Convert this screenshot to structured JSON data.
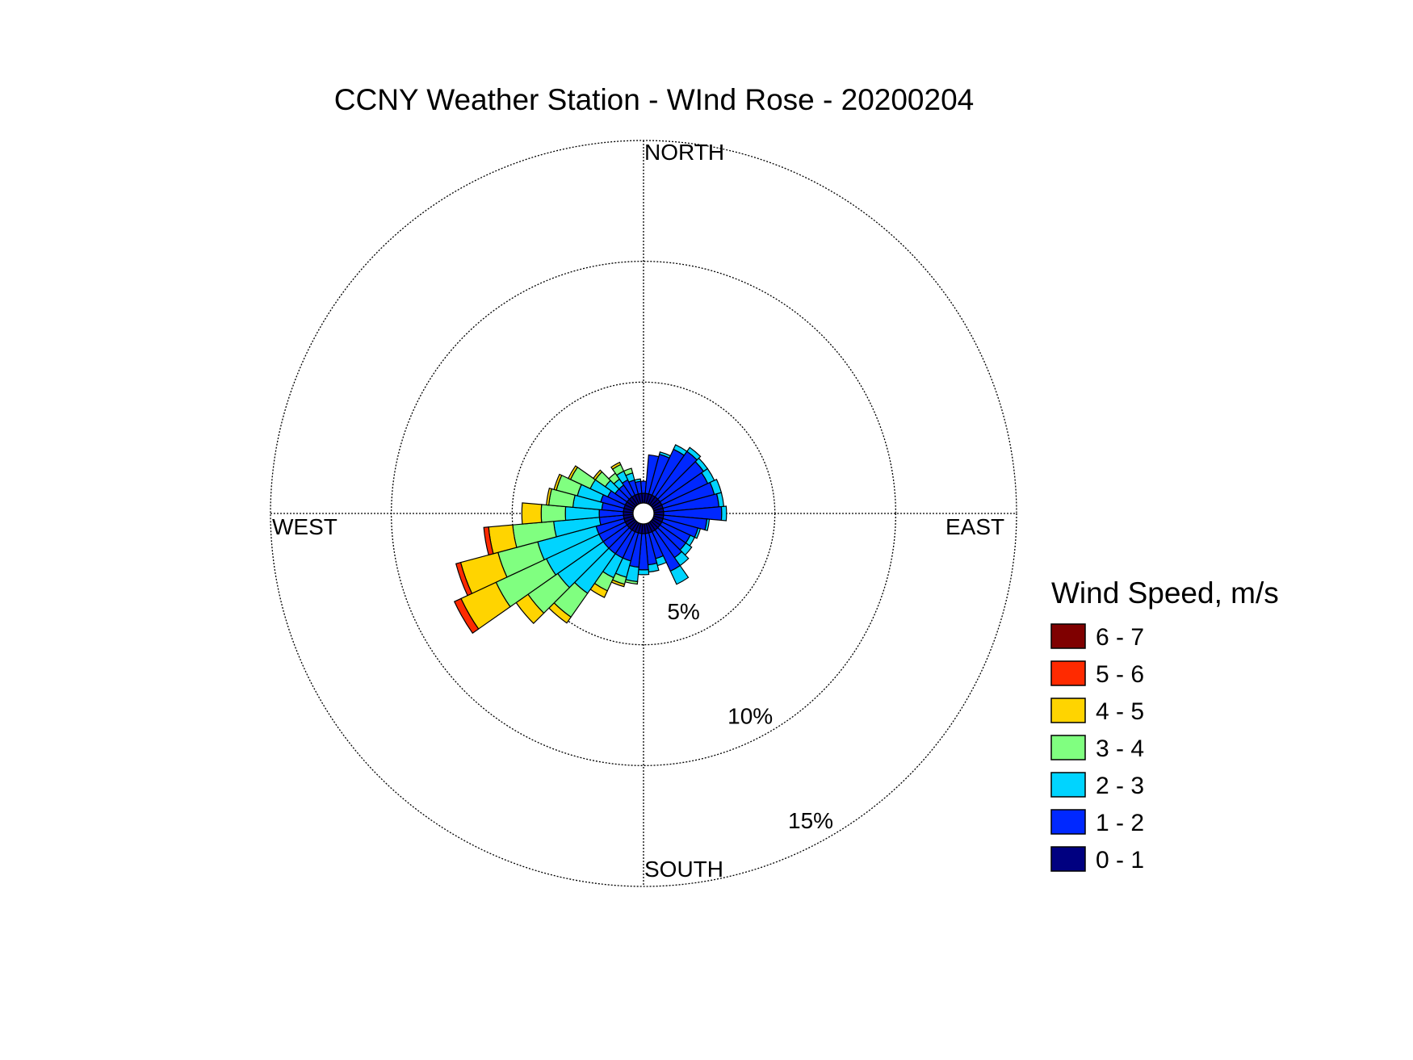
{
  "chart_data": {
    "type": "wind-rose",
    "title": "CCNY Weather Station - WInd Rose - 20200204",
    "directions": {
      "north": "NORTH",
      "east": "EAST",
      "south": "SOUTH",
      "west": "WEST"
    },
    "radial_ticks": [
      {
        "value": 5,
        "label": "5%"
      },
      {
        "value": 10,
        "label": "10%"
      },
      {
        "value": 15,
        "label": "15%"
      }
    ],
    "radial_max": 15,
    "grid": true,
    "legend": {
      "title": "Wind Speed, m/s",
      "position": "right",
      "bins": [
        {
          "label": "6 - 7",
          "color": "#7f0000"
        },
        {
          "label": "5 - 6",
          "color": "#ff2a00"
        },
        {
          "label": "4 - 5",
          "color": "#ffd400"
        },
        {
          "label": "3 - 4",
          "color": "#80ff80"
        },
        {
          "label": "2 - 3",
          "color": "#00d4ff"
        },
        {
          "label": "1 - 2",
          "color": "#0028ff"
        },
        {
          "label": "0 - 1",
          "color": "#000080"
        }
      ]
    },
    "sector_width_deg": 10,
    "series_order": [
      "0 - 1",
      "1 - 2",
      "2 - 3",
      "3 - 4",
      "4 - 5",
      "5 - 6",
      "6 - 7"
    ],
    "sectors": [
      {
        "dir": 0,
        "values": [
          0.4,
          0.5
        ]
      },
      {
        "dir": 10,
        "values": [
          0.4,
          1.6
        ]
      },
      {
        "dir": 20,
        "values": [
          0.4,
          1.7,
          0.1
        ]
      },
      {
        "dir": 30,
        "values": [
          0.4,
          2.1,
          0.2
        ]
      },
      {
        "dir": 40,
        "values": [
          0.4,
          2.3,
          0.2
        ]
      },
      {
        "dir": 50,
        "values": [
          0.4,
          2.2,
          0.2
        ]
      },
      {
        "dir": 60,
        "values": [
          0.4,
          2.1,
          0.3
        ]
      },
      {
        "dir": 70,
        "values": [
          0.4,
          2.2,
          0.3
        ]
      },
      {
        "dir": 80,
        "values": [
          0.4,
          2.3,
          0.2
        ]
      },
      {
        "dir": 90,
        "values": [
          0.4,
          2.4,
          0.2
        ]
      },
      {
        "dir": 100,
        "values": [
          0.4,
          1.8,
          0.1
        ]
      },
      {
        "dir": 110,
        "values": [
          0.4,
          1.5,
          0.1
        ]
      },
      {
        "dir": 120,
        "values": [
          0.4,
          1.3,
          0.2
        ]
      },
      {
        "dir": 130,
        "values": [
          0.4,
          1.3,
          0.3
        ]
      },
      {
        "dir": 140,
        "values": [
          0.4,
          1.4,
          0.4
        ]
      },
      {
        "dir": 150,
        "values": [
          0.4,
          1.8,
          0.6
        ]
      },
      {
        "dir": 160,
        "values": [
          0.4,
          1.1,
          0.3
        ]
      },
      {
        "dir": 170,
        "values": [
          0.4,
          1.3,
          0.3
        ]
      },
      {
        "dir": 180,
        "values": [
          0.4,
          1.5,
          0.2
        ]
      },
      {
        "dir": 190,
        "values": [
          0.4,
          1.4,
          0.6,
          0.1
        ]
      },
      {
        "dir": 200,
        "values": [
          0.4,
          1.2,
          0.7,
          0.3,
          0.1
        ]
      },
      {
        "dir": 210,
        "values": [
          0.4,
          1.2,
          0.9,
          0.6,
          0.3
        ]
      },
      {
        "dir": 220,
        "values": [
          0.4,
          1.2,
          2.0,
          1.2,
          0.3
        ]
      },
      {
        "dir": 230,
        "values": [
          0.4,
          1.2,
          2.3,
          1.5,
          0.6
        ]
      },
      {
        "dir": 240,
        "values": [
          0.4,
          1.2,
          2.4,
          2.3,
          1.6,
          0.3
        ]
      },
      {
        "dir": 250,
        "values": [
          0.4,
          1.2,
          2.5,
          1.7,
          1.6,
          0.2
        ]
      },
      {
        "dir": 260,
        "values": [
          0.4,
          1.0,
          1.9,
          1.7,
          1.0,
          0.2
        ]
      },
      {
        "dir": 270,
        "values": [
          0.4,
          1.0,
          1.4,
          1.0,
          0.8
        ]
      },
      {
        "dir": 280,
        "values": [
          0.4,
          0.9,
          1.2,
          1.0,
          0.1
        ]
      },
      {
        "dir": 290,
        "values": [
          0.4,
          1.0,
          1.0,
          0.9,
          0.1
        ]
      },
      {
        "dir": 300,
        "values": [
          0.4,
          0.8,
          0.8,
          0.9,
          0.1
        ]
      },
      {
        "dir": 310,
        "values": [
          0.4,
          0.6,
          0.5,
          0.5,
          0.1
        ]
      },
      {
        "dir": 320,
        "values": [
          0.4,
          0.6,
          0.3,
          0.3
        ]
      },
      {
        "dir": 330,
        "values": [
          0.4,
          0.7,
          0.4,
          0.3,
          0.1
        ]
      },
      {
        "dir": 340,
        "values": [
          0.4,
          0.6,
          0.3,
          0.2
        ]
      },
      {
        "dir": 350,
        "values": [
          0.4,
          0.5,
          0.1
        ]
      }
    ]
  }
}
